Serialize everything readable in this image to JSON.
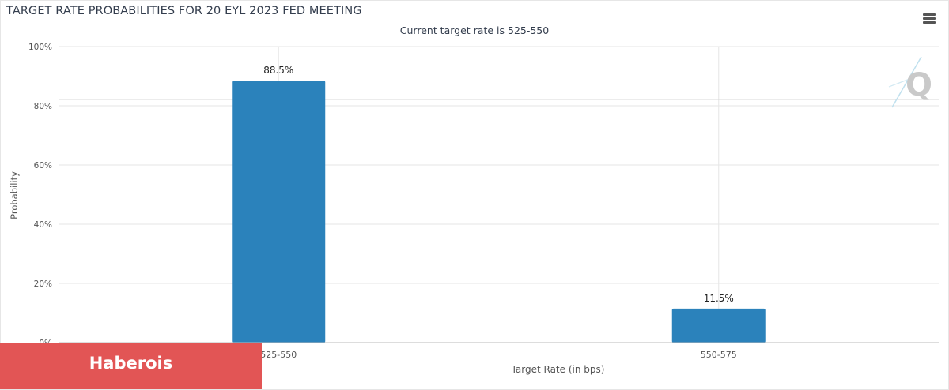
{
  "chart_data": {
    "type": "bar",
    "title": "TARGET RATE PROBABILITIES FOR 20 EYL 2023 FED MEETING",
    "subtitle": "Current target rate is 525-550",
    "categories": [
      "525-550",
      "550-575"
    ],
    "values": [
      88.5,
      11.5
    ],
    "data_labels": [
      "88.5%",
      "11.5%"
    ],
    "xlabel": "Target Rate (in bps)",
    "ylabel": "Probability",
    "ylim": [
      0,
      100
    ],
    "yticks": [
      {
        "value": 0,
        "label": "0%"
      },
      {
        "value": 20,
        "label": "20%"
      },
      {
        "value": 40,
        "label": "40%"
      },
      {
        "value": 60,
        "label": "60%"
      },
      {
        "value": 80,
        "label": "80%"
      },
      {
        "value": 100,
        "label": "100%"
      }
    ],
    "grid": true,
    "bar_color": "#2b82bb"
  },
  "toolbar": {
    "menu_icon": "hamburger-menu-icon"
  },
  "logo": {
    "icon": "quikstrike-q-logo-icon"
  },
  "watermark": {
    "text": "Haberois",
    "color": "#e25555"
  }
}
